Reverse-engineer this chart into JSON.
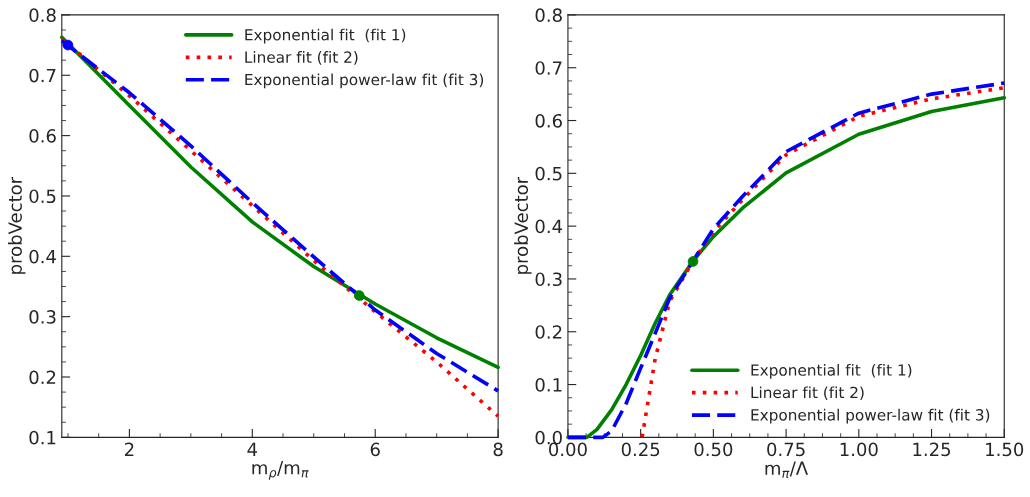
{
  "chart_data": [
    {
      "type": "line",
      "xlabel": "m$_{ρ}$/m$_{π}$",
      "ylabel": "probVector",
      "xlim": [
        0.9,
        8
      ],
      "xticks": [
        2,
        4,
        6,
        8
      ],
      "ylim": [
        0.1,
        0.8
      ],
      "yticks": [
        0.1,
        0.2,
        0.3,
        0.4,
        0.5,
        0.6,
        0.7,
        0.8
      ],
      "grid": false,
      "legend": "top right",
      "series": [
        {
          "name": "Exponential fit  (fit 1)",
          "color": "#008000",
          "line_style": "solid",
          "x": [
            0.9,
            2,
            3,
            4,
            5,
            6,
            7,
            8
          ],
          "values": [
            0.763,
            0.65,
            0.548,
            0.457,
            0.383,
            0.321,
            0.265,
            0.216
          ]
        },
        {
          "name": "Linear fit (fit 2)",
          "color": "#ff0000",
          "line_style": "dotted",
          "x": [
            0.9,
            2,
            3,
            4,
            5,
            6,
            7,
            8
          ],
          "values": [
            0.76,
            0.666,
            0.575,
            0.484,
            0.393,
            0.308,
            0.225,
            0.135
          ]
        },
        {
          "name": "Exponential power-law fit (fit 3)",
          "color": "#0000ff",
          "line_style": "dashed",
          "x": [
            0.9,
            2,
            3,
            4,
            5,
            6,
            7,
            8
          ],
          "values": [
            0.757,
            0.671,
            0.583,
            0.489,
            0.399,
            0.311,
            0.239,
            0.177
          ]
        },
        {
          "type": "scatter",
          "color": "#0000ff",
          "marker": "circle",
          "x": [
            1.0
          ],
          "values": [
            0.75
          ]
        },
        {
          "type": "scatter",
          "color": "#008000",
          "marker": "circle",
          "x": [
            5.74
          ],
          "values": [
            0.335
          ]
        }
      ]
    },
    {
      "type": "line",
      "xlabel": "m$_{π}$/Λ",
      "ylabel": "probVector",
      "xlim": [
        0,
        1.5
      ],
      "xticks": [
        {
          "value": 0,
          "label": "0.00"
        },
        {
          "value": 0.25,
          "label": "0.25"
        },
        {
          "value": 0.5,
          "label": "0.50"
        },
        {
          "value": 0.75,
          "label": "0.75"
        },
        {
          "value": 1.0,
          "label": "1.00"
        },
        {
          "value": 1.25,
          "label": "1.25"
        },
        {
          "value": 1.5,
          "label": "1.50"
        }
      ],
      "ylim": [
        0,
        0.8
      ],
      "yticks": [
        {
          "value": 0,
          "label": "0.0"
        },
        0.1,
        0.2,
        0.3,
        0.4,
        0.5,
        0.6,
        0.7,
        0.8
      ],
      "grid": false,
      "legend": "bottom right",
      "series": [
        {
          "name": "Exponential fit  (fit 1)",
          "color": "#008000",
          "line_style": "solid",
          "x": [
            0,
            0.065,
            0.1,
            0.15,
            0.2,
            0.25,
            0.3,
            0.35,
            0.43,
            0.5,
            0.6,
            0.75,
            1.0,
            1.25,
            1.5
          ],
          "values": [
            0,
            0,
            0.015,
            0.052,
            0.1,
            0.155,
            0.216,
            0.27,
            0.334,
            0.38,
            0.434,
            0.501,
            0.574,
            0.617,
            0.643
          ]
        },
        {
          "name": "Linear fit (fit 2)",
          "color": "#ff0000",
          "line_style": "dotted",
          "x": [
            0.255,
            0.27,
            0.3,
            0.35,
            0.43,
            0.5,
            0.6,
            0.75,
            1.0,
            1.25,
            1.5
          ],
          "values": [
            0,
            0.05,
            0.149,
            0.258,
            0.334,
            0.389,
            0.45,
            0.535,
            0.608,
            0.641,
            0.662
          ]
        },
        {
          "name": "Exponential power-law fit (fit 3)",
          "color": "#0000ff",
          "line_style": "dashed",
          "x": [
            0,
            0.12,
            0.15,
            0.2,
            0.25,
            0.3,
            0.35,
            0.43,
            0.5,
            0.6,
            0.75,
            1.0,
            1.25,
            1.5
          ],
          "values": [
            0,
            0,
            0.012,
            0.064,
            0.131,
            0.197,
            0.264,
            0.334,
            0.395,
            0.456,
            0.541,
            0.614,
            0.65,
            0.671
          ]
        },
        {
          "type": "scatter",
          "color": "#008000",
          "marker": "circle",
          "x": [
            0.43
          ],
          "values": [
            0.333
          ]
        }
      ]
    }
  ]
}
